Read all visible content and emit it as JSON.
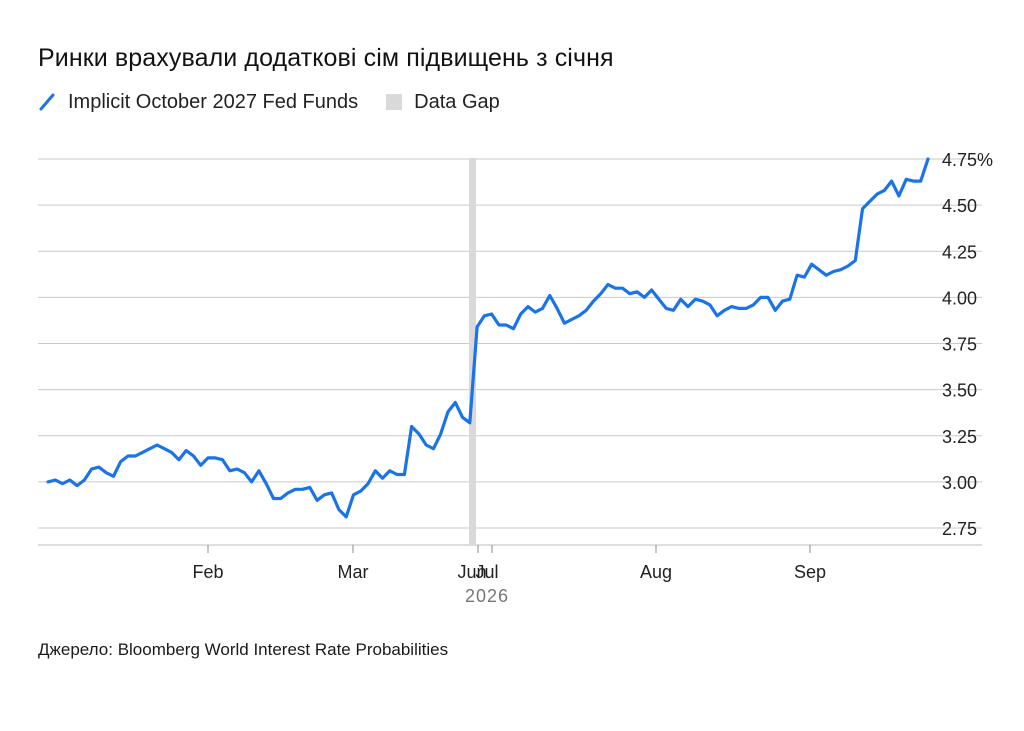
{
  "title": "Ринки врахували додаткові сім підвищень з січня",
  "legend": {
    "series_label": "Implicit October 2027 Fed Funds",
    "gap_label": "Data Gap"
  },
  "source": "Джерело: Bloomberg World Interest Rate Probabilities",
  "colors": {
    "line": "#1a73e8",
    "grid": "#c9c9c9",
    "gap": "#d9d9d9",
    "text": "#222222"
  },
  "chart_data": {
    "type": "line",
    "title": "Ринки врахували додаткові сім підвищень з січня",
    "xlabel": "2026",
    "ylabel": "",
    "ylim": [
      2.65,
      4.85
    ],
    "y_ticks": [
      "4.75%",
      "4.50",
      "4.25",
      "4.00",
      "3.75",
      "3.50",
      "3.25",
      "3.00",
      "2.75"
    ],
    "y_tick_values": [
      4.75,
      4.5,
      4.25,
      4.0,
      3.75,
      3.5,
      3.25,
      3.0,
      2.75
    ],
    "x_ticks": [
      "Feb",
      "Mar",
      "Jun",
      "Jul",
      "Aug",
      "Sep"
    ],
    "x_year_label": "2026",
    "data_gap": "Jun",
    "grid": true,
    "series": [
      {
        "name": "Implicit October 2027 Fed Funds",
        "values": [
          3.0,
          3.01,
          2.99,
          3.01,
          2.98,
          3.01,
          3.07,
          3.08,
          3.05,
          3.03,
          3.11,
          3.14,
          3.14,
          3.16,
          3.18,
          3.2,
          3.18,
          3.16,
          3.12,
          3.17,
          3.14,
          3.09,
          3.13,
          3.13,
          3.12,
          3.06,
          3.07,
          3.05,
          3.0,
          3.06,
          2.99,
          2.91,
          2.91,
          2.94,
          2.96,
          2.96,
          2.97,
          2.9,
          2.93,
          2.94,
          2.85,
          2.81,
          2.93,
          2.95,
          2.99,
          3.06,
          3.02,
          3.06,
          3.04,
          3.04,
          3.3,
          3.26,
          3.2,
          3.18,
          3.26,
          3.38,
          3.43,
          3.35,
          3.32,
          3.84,
          3.9,
          3.91,
          3.85,
          3.85,
          3.83,
          3.91,
          3.95,
          3.92,
          3.94,
          4.01,
          3.94,
          3.86,
          3.88,
          3.9,
          3.93,
          3.98,
          4.02,
          4.07,
          4.05,
          4.05,
          4.02,
          4.03,
          4.0,
          4.04,
          3.99,
          3.94,
          3.93,
          3.99,
          3.95,
          3.99,
          3.98,
          3.96,
          3.9,
          3.93,
          3.95,
          3.94,
          3.94,
          3.96,
          4.0,
          4.0,
          3.93,
          3.98,
          3.99,
          4.12,
          4.11,
          4.18,
          4.15,
          4.12,
          4.14,
          4.15,
          4.17,
          4.2,
          4.48,
          4.52,
          4.56,
          4.58,
          4.63,
          4.55,
          4.64,
          4.63,
          4.63,
          4.75
        ]
      }
    ]
  }
}
